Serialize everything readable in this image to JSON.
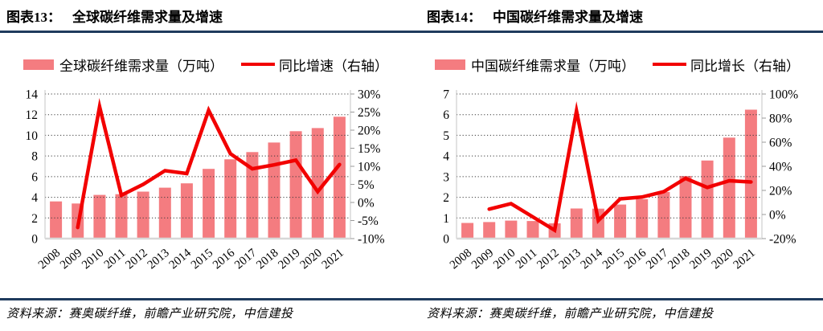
{
  "colors": {
    "bar": "#F47C80",
    "line": "#F20000",
    "rule": "#1F3B5D",
    "grid": "#3A3A3A",
    "axis_line": "#C6C6C6",
    "baseline": "#D8D8D8",
    "tick": "#9A9A9A",
    "text": "#000000"
  },
  "chart_data": [
    {
      "type": "bar+line",
      "figure_label": "图表13：",
      "title": "全球碳纤维需求量及增速",
      "categories": [
        "2008",
        "2009",
        "2010",
        "2011",
        "2012",
        "2013",
        "2014",
        "2015",
        "2016",
        "2017",
        "2018",
        "2019",
        "2020",
        "2021"
      ],
      "series": [
        {
          "name": "全球碳纤维需求量（万吨）",
          "type": "bar",
          "axis": "left",
          "values": [
            3.6,
            3.4,
            4.23,
            4.3,
            4.55,
            4.93,
            5.35,
            6.75,
            7.68,
            8.38,
            9.3,
            10.4,
            10.7,
            11.8
          ]
        },
        {
          "name": "同比增速（右轴）",
          "type": "line",
          "axis": "right",
          "unit": "%",
          "values": [
            null,
            -6.9,
            26.5,
            2,
            5,
            8.8,
            8,
            25.5,
            13.5,
            9.3,
            10.4,
            11.7,
            3,
            10.5
          ]
        }
      ],
      "left_axis": {
        "min": 0,
        "max": 14,
        "step": 2
      },
      "right_axis": {
        "min": -10,
        "max": 30,
        "step": 5,
        "suffix": "%"
      },
      "grid": true,
      "legend_position": "top",
      "source": "资料来源：赛奥碳纤维，前瞻产业研究院，中信建投"
    },
    {
      "type": "bar+line",
      "figure_label": "图表14：",
      "title": "中国碳纤维需求量及增速",
      "categories": [
        "2008",
        "2009",
        "2010",
        "2011",
        "2012",
        "2013",
        "2014",
        "2015",
        "2016",
        "2017",
        "2018",
        "2019",
        "2020",
        "2021"
      ],
      "series": [
        {
          "name": "中国碳纤维需求量（万吨）",
          "type": "bar",
          "axis": "left",
          "values": [
            0.76,
            0.8,
            0.87,
            0.85,
            0.74,
            1.46,
            1.45,
            1.65,
            1.91,
            2.26,
            3.03,
            3.78,
            4.89,
            6.24
          ]
        },
        {
          "name": "同比增长（右轴）",
          "type": "line",
          "axis": "right",
          "unit": "%",
          "values": [
            null,
            4.5,
            9,
            -2,
            -13,
            86,
            -5,
            13,
            14.5,
            19,
            30,
            22.5,
            28,
            27
          ]
        }
      ],
      "left_axis": {
        "min": 0,
        "max": 7,
        "step": 1
      },
      "right_axis": {
        "min": -20,
        "max": 100,
        "step": 20,
        "suffix": "%"
      },
      "grid": true,
      "legend_position": "top",
      "source": "资料来源：赛奥碳纤维，前瞻产业研究院，中信建投"
    }
  ]
}
